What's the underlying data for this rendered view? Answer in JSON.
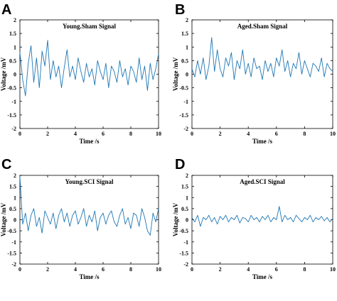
{
  "chart_data": [
    {
      "panel": "A",
      "type": "line",
      "title": "Young.Sham Signal",
      "xlabel": "Time /s",
      "ylabel": "Voltage /mV",
      "xlim": [
        0,
        10
      ],
      "ylim": [
        -2,
        2
      ],
      "xticks": [
        0,
        2,
        4,
        6,
        8,
        10
      ],
      "yticks": [
        -2,
        -1.5,
        -1,
        -0.5,
        0,
        0.5,
        1,
        1.5,
        2
      ],
      "x": [
        0,
        0.2,
        0.4,
        0.6,
        0.8,
        1,
        1.2,
        1.4,
        1.6,
        1.8,
        2,
        2.2,
        2.4,
        2.6,
        2.8,
        3,
        3.2,
        3.4,
        3.6,
        3.8,
        4,
        4.2,
        4.4,
        4.6,
        4.8,
        5,
        5.2,
        5.4,
        5.6,
        5.8,
        6,
        6.2,
        6.4,
        6.6,
        6.8,
        7,
        7.2,
        7.4,
        7.6,
        7.8,
        8,
        8.2,
        8.4,
        8.6,
        8.8,
        9,
        9.2,
        9.4,
        9.6,
        9.8,
        10
      ],
      "series": [
        {
          "values": [
            0.8,
            -0.2,
            -0.8,
            0.4,
            1.05,
            -0.3,
            0.6,
            -0.5,
            0.85,
            0.3,
            1.25,
            -0.2,
            0.5,
            -0.1,
            0.3,
            -0.5,
            0.25,
            0.9,
            -0.1,
            0.3,
            -0.2,
            0.6,
            0.1,
            -0.3,
            0.4,
            -0.1,
            0.2,
            -0.4,
            0.5,
            0.1,
            -0.2,
            0.4,
            -0.5,
            0.3,
            0.1,
            -0.3,
            0.5,
            -0.1,
            0.2,
            -0.4,
            0.3,
            0.1,
            -0.3,
            0.6,
            -0.2,
            0.3,
            -0.6,
            0.4,
            -0.2,
            0.2,
            0.75
          ]
        }
      ]
    },
    {
      "panel": "B",
      "type": "line",
      "title": "Aged.Sham Signal",
      "xlabel": "Time /s",
      "ylabel": "Voltage /mV",
      "xlim": [
        0,
        10
      ],
      "ylim": [
        -2,
        2
      ],
      "xticks": [
        0,
        2,
        4,
        6,
        8,
        10
      ],
      "yticks": [
        -2,
        -1.5,
        -1,
        -0.5,
        0,
        0.5,
        1,
        1.5,
        2
      ],
      "x": [
        0,
        0.2,
        0.4,
        0.6,
        0.8,
        1,
        1.2,
        1.4,
        1.6,
        1.8,
        2,
        2.2,
        2.4,
        2.6,
        2.8,
        3,
        3.2,
        3.4,
        3.6,
        3.8,
        4,
        4.2,
        4.4,
        4.6,
        4.8,
        5,
        5.2,
        5.4,
        5.6,
        5.8,
        6,
        6.2,
        6.4,
        6.6,
        6.8,
        7,
        7.2,
        7.4,
        7.6,
        7.8,
        8,
        8.2,
        8.4,
        8.6,
        8.8,
        9,
        9.2,
        9.4,
        9.6,
        9.8,
        10
      ],
      "series": [
        {
          "values": [
            0.2,
            -0.1,
            0.5,
            0,
            0.6,
            -0.2,
            0.3,
            1.35,
            0.1,
            0.9,
            0.2,
            -0.1,
            0.6,
            0.3,
            0.8,
            -0.2,
            0.5,
            0.2,
            0.9,
            0,
            0.4,
            -0.1,
            0.6,
            0.2,
            0.3,
            -0.2,
            0.5,
            0.1,
            0.4,
            -0.1,
            0.6,
            0.3,
            0.9,
            0.1,
            0.5,
            -0.1,
            0.4,
            0.2,
            0.8,
            0,
            0.5,
            0.2,
            -0.1,
            0.4,
            0.3,
            0.1,
            0.6,
            -0.1,
            0.4,
            0.2,
            0.1
          ]
        }
      ]
    },
    {
      "panel": "C",
      "type": "line",
      "title": "Young.SCI Signal",
      "xlabel": "Time /s",
      "ylabel": "Voltage /mV",
      "xlim": [
        0,
        10
      ],
      "ylim": [
        -2,
        2
      ],
      "xticks": [
        0,
        2,
        4,
        6,
        8,
        10
      ],
      "yticks": [
        -2,
        -1.5,
        -1,
        -0.5,
        0,
        0.5,
        1,
        1.5,
        2
      ],
      "x": [
        0,
        0.2,
        0.4,
        0.6,
        0.8,
        1,
        1.2,
        1.4,
        1.6,
        1.8,
        2,
        2.2,
        2.4,
        2.6,
        2.8,
        3,
        3.2,
        3.4,
        3.6,
        3.8,
        4,
        4.2,
        4.4,
        4.6,
        4.8,
        5,
        5.2,
        5.4,
        5.6,
        5.8,
        6,
        6.2,
        6.4,
        6.6,
        6.8,
        7,
        7.2,
        7.4,
        7.6,
        7.8,
        8,
        8.2,
        8.4,
        8.6,
        8.8,
        9,
        9.2,
        9.4,
        9.6,
        9.8,
        10
      ],
      "series": [
        {
          "values": [
            1.95,
            -0.2,
            0.3,
            -0.5,
            0.2,
            0.5,
            -0.3,
            0.1,
            -0.6,
            0.4,
            0.1,
            -0.2,
            0.3,
            -0.4,
            0.2,
            0.5,
            -0.1,
            0.3,
            -0.3,
            0.2,
            0.4,
            -0.2,
            0.1,
            0.5,
            -0.3,
            0.2,
            -0.1,
            0.4,
            -0.5,
            0.1,
            0.3,
            -0.2,
            0.2,
            0.4,
            -0.1,
            -0.3,
            0.2,
            0.5,
            -0.2,
            0.1,
            -0.4,
            0.3,
            0.2,
            -0.3,
            0.5,
            0.1,
            -0.5,
            -0.7,
            0.3,
            -0.1,
            0.5
          ]
        }
      ]
    },
    {
      "panel": "D",
      "type": "line",
      "title": "Aged.SCI Signal",
      "xlabel": "Time /s",
      "ylabel": "Voltage /mV",
      "xlim": [
        0,
        10
      ],
      "ylim": [
        -2,
        2
      ],
      "xticks": [
        0,
        2,
        4,
        6,
        8,
        10
      ],
      "yticks": [
        -2,
        -1.5,
        -1,
        -0.5,
        0,
        0.5,
        1,
        1.5,
        2
      ],
      "x": [
        0,
        0.2,
        0.4,
        0.6,
        0.8,
        1,
        1.2,
        1.4,
        1.6,
        1.8,
        2,
        2.2,
        2.4,
        2.6,
        2.8,
        3,
        3.2,
        3.4,
        3.6,
        3.8,
        4,
        4.2,
        4.4,
        4.6,
        4.8,
        5,
        5.2,
        5.4,
        5.6,
        5.8,
        6,
        6.2,
        6.4,
        6.6,
        6.8,
        7,
        7.2,
        7.4,
        7.6,
        7.8,
        8,
        8.2,
        8.4,
        8.6,
        8.8,
        9,
        9.2,
        9.4,
        9.6,
        9.8,
        10
      ],
      "series": [
        {
          "values": [
            0.1,
            -0.1,
            0.2,
            -0.3,
            0.1,
            0,
            0.2,
            -0.1,
            0.1,
            -0.2,
            0.15,
            0,
            0.2,
            -0.1,
            0.1,
            0,
            0.2,
            -0.15,
            0.1,
            0.05,
            -0.1,
            0.2,
            0,
            0.1,
            -0.1,
            0.15,
            0,
            0.2,
            -0.1,
            0.1,
            0,
            0.6,
            -0.1,
            0.2,
            0,
            0.1,
            -0.1,
            0.2,
            0.05,
            -0.1,
            0.1,
            0,
            0.2,
            -0.1,
            0.1,
            0,
            0.15,
            -0.05,
            0.1,
            -0.1,
            0.05
          ]
        }
      ]
    }
  ]
}
